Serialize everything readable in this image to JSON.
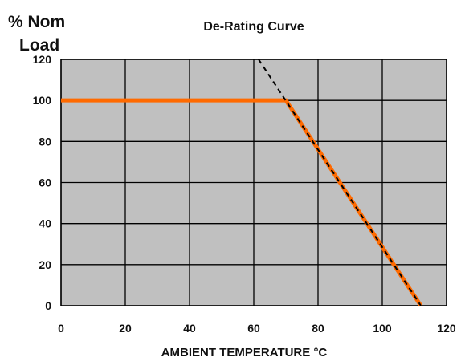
{
  "chart_data": {
    "type": "line",
    "title": "De-Rating Curve",
    "ylabel_line1": "% Nom",
    "ylabel_line2": "Load",
    "xlabel": "AMBIENT TEMPERATURE °C",
    "xlim": [
      0,
      120
    ],
    "ylim": [
      0,
      120
    ],
    "x_ticks": [
      0,
      20,
      40,
      60,
      80,
      100,
      120
    ],
    "y_ticks": [
      0,
      20,
      40,
      60,
      80,
      100,
      120
    ],
    "grid": true,
    "plot_background": "#c0c0c0",
    "series": [
      {
        "style": "solid",
        "color": "#ff6a00",
        "x": [
          0,
          70,
          112
        ],
        "y": [
          100,
          100,
          0
        ]
      },
      {
        "style": "dashed",
        "color": "#000000",
        "x": [
          61.5,
          112
        ],
        "y": [
          120,
          0
        ]
      }
    ]
  }
}
